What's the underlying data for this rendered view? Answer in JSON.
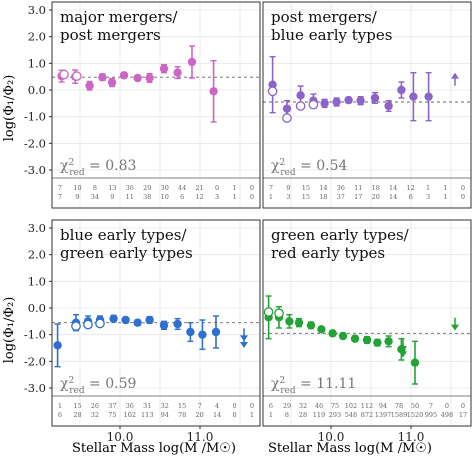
{
  "ylabel": "log(Φ₁/Φ₂)",
  "xlabel": "Stellar Mass log(M /M☉)",
  "xtick_labels": [
    "10.0",
    "11.0"
  ],
  "ytick_labels": [
    "3.0",
    "2.0",
    "1.0",
    "0.0",
    "-1.0",
    "-2.0",
    "-3.0"
  ],
  "chart_data": [
    {
      "type": "scatter",
      "title_lines": [
        "major mergers/",
        "post mergers"
      ],
      "chi2": "0.83",
      "color": "#cc66c4",
      "ylim": [
        -3.3,
        3.3
      ],
      "xlim": [
        9.15,
        11.75
      ],
      "ref_line": 0.48,
      "counts_top": [
        "7",
        "10",
        "8",
        "13",
        "36",
        "29",
        "30",
        "44",
        "21",
        "0",
        "1",
        "0"
      ],
      "counts_bottom": [
        "7",
        "9",
        "34",
        "9",
        "11",
        "38",
        "10",
        "6",
        "12",
        "3",
        "1",
        "0"
      ],
      "filled": [
        {
          "x": 9.27,
          "y": 0.52,
          "err": 0.22
        },
        {
          "x": 9.44,
          "y": 0.5,
          "err": 0.25
        },
        {
          "x": 9.62,
          "y": 0.16,
          "err": 0.16
        },
        {
          "x": 9.78,
          "y": 0.48,
          "err": 0.12
        },
        {
          "x": 9.9,
          "y": 0.28,
          "err": 0.15
        },
        {
          "x": 10.05,
          "y": 0.55,
          "err": 0.1
        },
        {
          "x": 10.22,
          "y": 0.45,
          "err": 0.1
        },
        {
          "x": 10.37,
          "y": 0.45,
          "err": 0.16
        },
        {
          "x": 10.55,
          "y": 0.8,
          "err": 0.15
        },
        {
          "x": 10.72,
          "y": 0.65,
          "err": 0.22
        },
        {
          "x": 10.9,
          "y": 1.05,
          "err": 0.6
        },
        {
          "x": 11.17,
          "y": -0.05,
          "err": 1.15
        }
      ],
      "open": [
        {
          "x": 9.3,
          "y": 0.58
        },
        {
          "x": 9.46,
          "y": 0.52
        }
      ],
      "arrows": []
    },
    {
      "type": "scatter",
      "title_lines": [
        "post mergers/",
        "blue early types"
      ],
      "chi2": "0.54",
      "color": "#8a64c8",
      "ylim": [
        -3.3,
        3.3
      ],
      "xlim": [
        9.15,
        11.75
      ],
      "ref_line": -0.45,
      "counts_top": [
        "7",
        "9",
        "15",
        "14",
        "36",
        "11",
        "18",
        "14",
        "12",
        "1",
        "1",
        "0"
      ],
      "counts_bottom": [
        "1",
        "3",
        "15",
        "18",
        "37",
        "17",
        "20",
        "14",
        "6",
        "3",
        "1",
        "0"
      ],
      "filled": [
        {
          "x": 9.27,
          "y": 0.2,
          "err": 1.05
        },
        {
          "x": 9.45,
          "y": -0.7,
          "err": 0.3
        },
        {
          "x": 9.62,
          "y": -0.2,
          "err": 0.35
        },
        {
          "x": 9.78,
          "y": -0.4,
          "err": 0.25
        },
        {
          "x": 9.92,
          "y": -0.5,
          "err": 0.15
        },
        {
          "x": 10.07,
          "y": -0.45,
          "err": 0.15
        },
        {
          "x": 10.22,
          "y": -0.38,
          "err": 0.1
        },
        {
          "x": 10.37,
          "y": -0.4,
          "err": 0.15
        },
        {
          "x": 10.55,
          "y": -0.3,
          "err": 0.2
        },
        {
          "x": 10.72,
          "y": -0.6,
          "err": 0.2
        },
        {
          "x": 10.88,
          "y": 0.0,
          "err": 0.3
        },
        {
          "x": 11.03,
          "y": -0.25,
          "err": 0.9
        },
        {
          "x": 11.22,
          "y": -0.25,
          "err": 0.9
        }
      ],
      "open": [
        {
          "x": 9.27,
          "y": -0.05
        },
        {
          "x": 9.45,
          "y": -1.05
        },
        {
          "x": 9.62,
          "y": -0.6
        },
        {
          "x": 9.78,
          "y": -0.55
        }
      ],
      "arrows": [
        {
          "x": 11.55,
          "y": 0.35,
          "dir": "up"
        }
      ]
    },
    {
      "type": "scatter",
      "title_lines": [
        "blue early types/",
        "green early types"
      ],
      "chi2": "0.59",
      "color": "#2f6fd0",
      "ylim": [
        -3.3,
        3.3
      ],
      "xlim": [
        9.15,
        11.75
      ],
      "ref_line": -0.55,
      "counts_top": [
        "1",
        "15",
        "26",
        "37",
        "36",
        "31",
        "32",
        "15",
        "7",
        "4",
        "0",
        "0"
      ],
      "counts_bottom": [
        "6",
        "28",
        "32",
        "75",
        "102",
        "113",
        "94",
        "78",
        "20",
        "14",
        "0",
        "1"
      ],
      "filled": [
        {
          "x": 9.22,
          "y": -1.4,
          "err": 0.8
        },
        {
          "x": 9.45,
          "y": -0.55,
          "err": 0.3
        },
        {
          "x": 9.6,
          "y": -0.5,
          "err": 0.2
        },
        {
          "x": 9.75,
          "y": -0.45,
          "err": 0.15
        },
        {
          "x": 9.92,
          "y": -0.4,
          "err": 0.12
        },
        {
          "x": 10.07,
          "y": -0.45,
          "err": 0.1
        },
        {
          "x": 10.22,
          "y": -0.55,
          "err": 0.1
        },
        {
          "x": 10.37,
          "y": -0.45,
          "err": 0.12
        },
        {
          "x": 10.55,
          "y": -0.65,
          "err": 0.15
        },
        {
          "x": 10.72,
          "y": -0.6,
          "err": 0.2
        },
        {
          "x": 10.88,
          "y": -0.9,
          "err": 0.35
        },
        {
          "x": 11.03,
          "y": -1.0,
          "err": 0.55
        },
        {
          "x": 11.2,
          "y": -0.9,
          "err": 0.6
        }
      ],
      "open": [
        {
          "x": 9.45,
          "y": -0.68
        },
        {
          "x": 9.6,
          "y": -0.62
        },
        {
          "x": 9.75,
          "y": -0.58
        }
      ],
      "arrows": [
        {
          "x": 11.55,
          "y": -0.95,
          "dir": "down"
        },
        {
          "x": 11.55,
          "y": -1.2,
          "dir": "down"
        }
      ]
    },
    {
      "type": "scatter",
      "title_lines": [
        "green early types/",
        "red early types"
      ],
      "chi2": "11.11",
      "color": "#22a336",
      "ylim": [
        -3.3,
        3.3
      ],
      "xlim": [
        9.15,
        11.75
      ],
      "ref_line": -0.95,
      "counts_top": [
        "6",
        "29",
        "32",
        "46",
        "75",
        "102",
        "112",
        "94",
        "78",
        "50",
        "7",
        "0",
        "0"
      ],
      "counts_bottom": [
        "1",
        "8",
        "28",
        "119",
        "293",
        "548",
        "872",
        "1397",
        "1589",
        "1520",
        "995",
        "498",
        "17"
      ],
      "filled": [
        {
          "x": 9.22,
          "y": -0.35,
          "err": 0.8
        },
        {
          "x": 9.35,
          "y": -0.35,
          "err": 0.4
        },
        {
          "x": 9.48,
          "y": -0.5,
          "err": 0.25
        },
        {
          "x": 9.6,
          "y": -0.55,
          "err": 0.15
        },
        {
          "x": 9.75,
          "y": -0.65,
          "err": 0.12
        },
        {
          "x": 9.88,
          "y": -0.8,
          "err": 0.1
        },
        {
          "x": 10.02,
          "y": -0.95,
          "err": 0.1
        },
        {
          "x": 10.15,
          "y": -1.05,
          "err": 0.1
        },
        {
          "x": 10.3,
          "y": -1.15,
          "err": 0.1
        },
        {
          "x": 10.45,
          "y": -1.2,
          "err": 0.12
        },
        {
          "x": 10.58,
          "y": -1.3,
          "err": 0.12
        },
        {
          "x": 10.72,
          "y": -1.25,
          "err": 0.2
        },
        {
          "x": 10.88,
          "y": -1.55,
          "err": 0.4
        },
        {
          "x": 11.05,
          "y": -2.05,
          "err": 0.8
        }
      ],
      "open": [
        {
          "x": 9.22,
          "y": -0.15
        },
        {
          "x": 9.35,
          "y": -0.2
        }
      ],
      "arrows": [
        {
          "x": 10.9,
          "y": -1.35,
          "dir": "down"
        },
        {
          "x": 10.9,
          "y": -1.55,
          "dir": "down"
        },
        {
          "x": 11.55,
          "y": -0.55,
          "dir": "down"
        }
      ]
    }
  ]
}
